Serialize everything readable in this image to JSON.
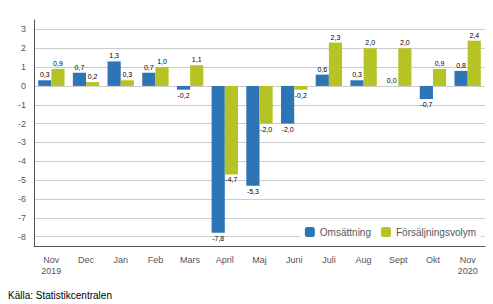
{
  "chart_data": {
    "type": "bar",
    "categories": [
      "Nov\n2019",
      "Dec",
      "Jan",
      "Feb",
      "Mars",
      "April",
      "Maj",
      "Juni",
      "Juli",
      "Aug",
      "Sept",
      "Okt",
      "Nov\n2020"
    ],
    "series": [
      {
        "name": "Omsättning",
        "color": "#2e75b6",
        "values": [
          0.3,
          0.7,
          1.3,
          0.7,
          -0.2,
          -7.8,
          -5.3,
          -2.0,
          0.6,
          0.3,
          0.0,
          -0.7,
          0.8
        ],
        "value_labels": [
          "0,3",
          "0,7",
          "1,3",
          "0,7",
          "-0,2",
          "-7,8",
          "-5,3",
          "-2,0",
          "0,6",
          "0,3",
          "0,0",
          "-0,7",
          "0,8"
        ]
      },
      {
        "name": "Försäljningsvolym",
        "color": "#b5c424",
        "values": [
          0.9,
          0.2,
          0.3,
          1.0,
          1.1,
          -4.7,
          -2.0,
          -0.2,
          2.3,
          2.0,
          2.0,
          0.9,
          2.4
        ],
        "value_labels": [
          "0,9",
          "0,2",
          "0,3",
          "1,0",
          "1,1",
          "-4,7",
          "-2,0",
          "-0,2",
          "2,3",
          "2,0",
          "2,0",
          "0,9",
          "2,4"
        ]
      }
    ],
    "ylim": [
      -8.5,
      3.5
    ],
    "yticks": [
      -8,
      -7,
      -6,
      -5,
      -4,
      -3,
      -2,
      -1,
      0,
      1,
      2,
      3
    ],
    "grid": true,
    "legend": "lower right",
    "data_labels": true,
    "annotations": [
      "Källa: Statistikcentralen"
    ]
  }
}
